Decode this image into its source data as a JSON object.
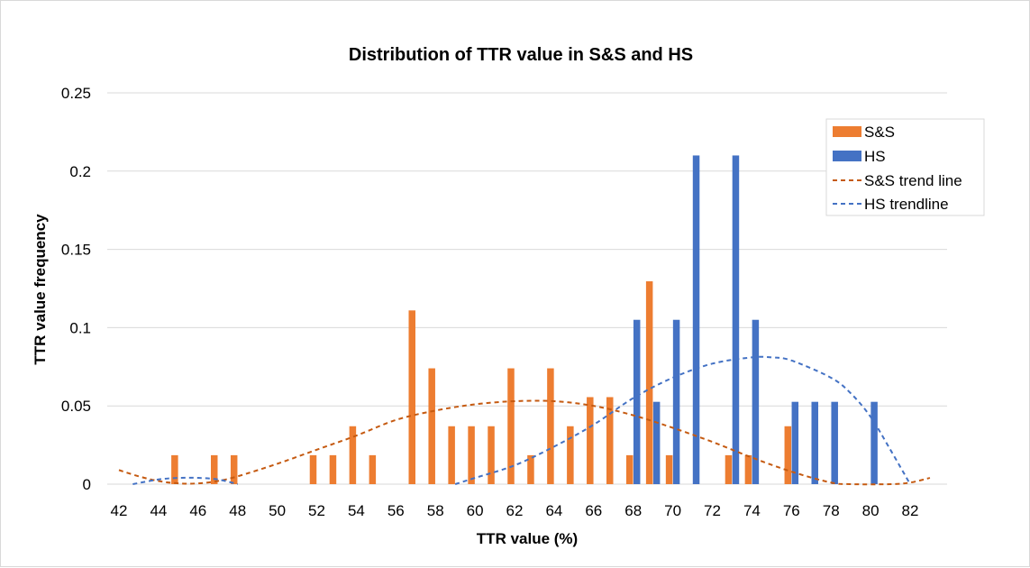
{
  "chart_data": {
    "type": "bar",
    "title": "Distribution of TTR value in S&S and HS",
    "xlabel": "TTR value (%)",
    "ylabel": "TTR value frequency",
    "ylim": [
      0,
      0.25
    ],
    "yticks": [
      "0",
      "0.05",
      "0.1",
      "0.15",
      "0.2",
      "0.25"
    ],
    "xticks": [
      "42",
      "44",
      "46",
      "48",
      "50",
      "52",
      "54",
      "56",
      "58",
      "60",
      "62",
      "64",
      "66",
      "68",
      "70",
      "72",
      "74",
      "76",
      "78",
      "80",
      "82"
    ],
    "xrange": [
      42,
      83
    ],
    "grid": true,
    "legend_placement": "top-right",
    "colors": {
      "ss": "#ED7D31",
      "hs": "#4472C4",
      "ss_trend": "#C55A11",
      "hs_trend": "#4472C4"
    },
    "series": [
      {
        "name": "S&S",
        "kind": "bar",
        "points": [
          [
            45,
            0.0185
          ],
          [
            47,
            0.0185
          ],
          [
            48,
            0.0185
          ],
          [
            52,
            0.0185
          ],
          [
            53,
            0.0185
          ],
          [
            54,
            0.037
          ],
          [
            55,
            0.0185
          ],
          [
            57,
            0.111
          ],
          [
            58,
            0.074
          ],
          [
            59,
            0.037
          ],
          [
            60,
            0.037
          ],
          [
            61,
            0.037
          ],
          [
            62,
            0.074
          ],
          [
            63,
            0.0185
          ],
          [
            64,
            0.074
          ],
          [
            65,
            0.037
          ],
          [
            66,
            0.0556
          ],
          [
            67,
            0.0556
          ],
          [
            68,
            0.0185
          ],
          [
            69,
            0.1296
          ],
          [
            70,
            0.0185
          ],
          [
            73,
            0.0185
          ],
          [
            74,
            0.0185
          ],
          [
            76,
            0.037
          ]
        ]
      },
      {
        "name": "HS",
        "kind": "bar",
        "points": [
          [
            68,
            0.105
          ],
          [
            69,
            0.0526
          ],
          [
            70,
            0.105
          ],
          [
            71,
            0.21
          ],
          [
            73,
            0.21
          ],
          [
            74,
            0.105
          ],
          [
            76,
            0.0526
          ],
          [
            77,
            0.0526
          ],
          [
            78,
            0.0526
          ],
          [
            80,
            0.0526
          ]
        ]
      },
      {
        "name": "S&S trend line",
        "kind": "trend",
        "points": [
          [
            42,
            0.009
          ],
          [
            43,
            0.005
          ],
          [
            44,
            0.002
          ],
          [
            45,
            0.0005
          ],
          [
            46,
            0.0005
          ],
          [
            47,
            0.002
          ],
          [
            48,
            0.005
          ],
          [
            50,
            0.013
          ],
          [
            52,
            0.022
          ],
          [
            54,
            0.031
          ],
          [
            56,
            0.041
          ],
          [
            58,
            0.047
          ],
          [
            60,
            0.051
          ],
          [
            62,
            0.053
          ],
          [
            64,
            0.053
          ],
          [
            66,
            0.05
          ],
          [
            68,
            0.044
          ],
          [
            70,
            0.036
          ],
          [
            72,
            0.027
          ],
          [
            74,
            0.017
          ],
          [
            76,
            0.008
          ],
          [
            78,
            0.001
          ],
          [
            79,
            0.0
          ],
          [
            81,
            0.0
          ],
          [
            82,
            0.001
          ],
          [
            83,
            0.004
          ]
        ]
      },
      {
        "name": "HS trendline",
        "kind": "trend",
        "segments": [
          [
            [
              42.7,
              0.0
            ],
            [
              44,
              0.003
            ],
            [
              45,
              0.004
            ],
            [
              46,
              0.004
            ],
            [
              47,
              0.003
            ],
            [
              48,
              0.0
            ]
          ],
          [
            [
              59,
              0.0
            ],
            [
              60,
              0.004
            ],
            [
              62,
              0.012
            ],
            [
              64,
              0.024
            ],
            [
              66,
              0.038
            ],
            [
              68,
              0.055
            ],
            [
              70,
              0.068
            ],
            [
              72,
              0.077
            ],
            [
              74,
              0.081
            ],
            [
              75,
              0.081
            ],
            [
              76,
              0.079
            ],
            [
              78,
              0.068
            ],
            [
              79,
              0.058
            ],
            [
              80,
              0.043
            ],
            [
              81,
              0.022
            ],
            [
              82,
              0.0
            ]
          ]
        ]
      }
    ]
  }
}
